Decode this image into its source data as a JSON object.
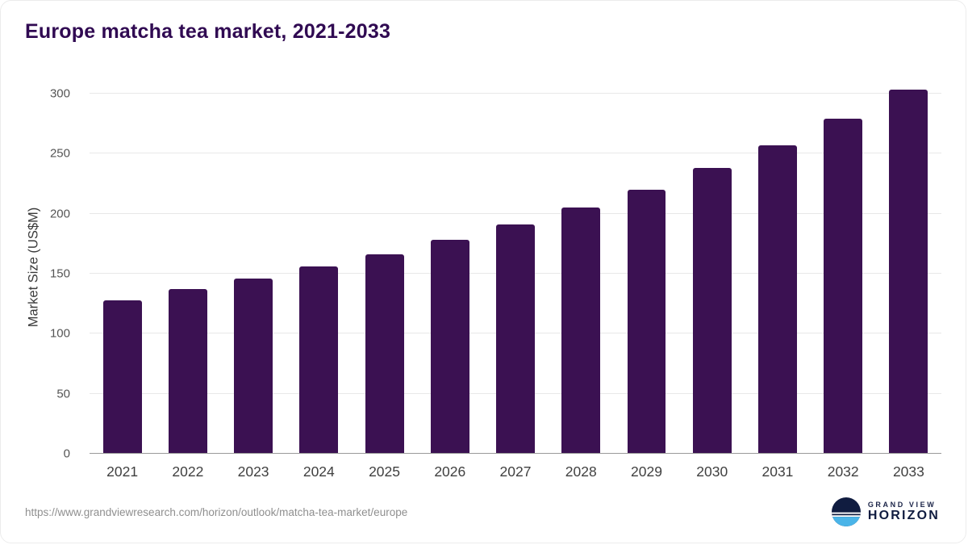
{
  "footer": {
    "source_url": "https://www.grandviewresearch.com/horizon/outlook/matcha-tea-market/europe"
  },
  "logo": {
    "top": "GRAND VIEW",
    "bottom": "HORIZON"
  },
  "colors": {
    "bar": "#3b1152",
    "title": "#300a52",
    "logo_navy": "#101c40",
    "logo_blue": "#4ab4e8",
    "gridline": "#e8e8e8",
    "axis_line": "#9a9a9a"
  },
  "chart_data": {
    "type": "bar",
    "title": "Europe matcha tea market, 2021-2033",
    "categories": [
      "2021",
      "2022",
      "2023",
      "2024",
      "2025",
      "2026",
      "2027",
      "2028",
      "2029",
      "2030",
      "2031",
      "2032",
      "2033"
    ],
    "values": [
      128,
      137,
      146,
      156,
      166,
      178,
      191,
      205,
      220,
      238,
      257,
      279,
      303
    ],
    "xlabel": "",
    "ylabel": "Market Size (US$M)",
    "yticks": [
      0,
      50,
      100,
      150,
      200,
      250,
      300
    ],
    "ylim": [
      0,
      310
    ],
    "grid": true,
    "legend": false,
    "legend_position": "none"
  }
}
